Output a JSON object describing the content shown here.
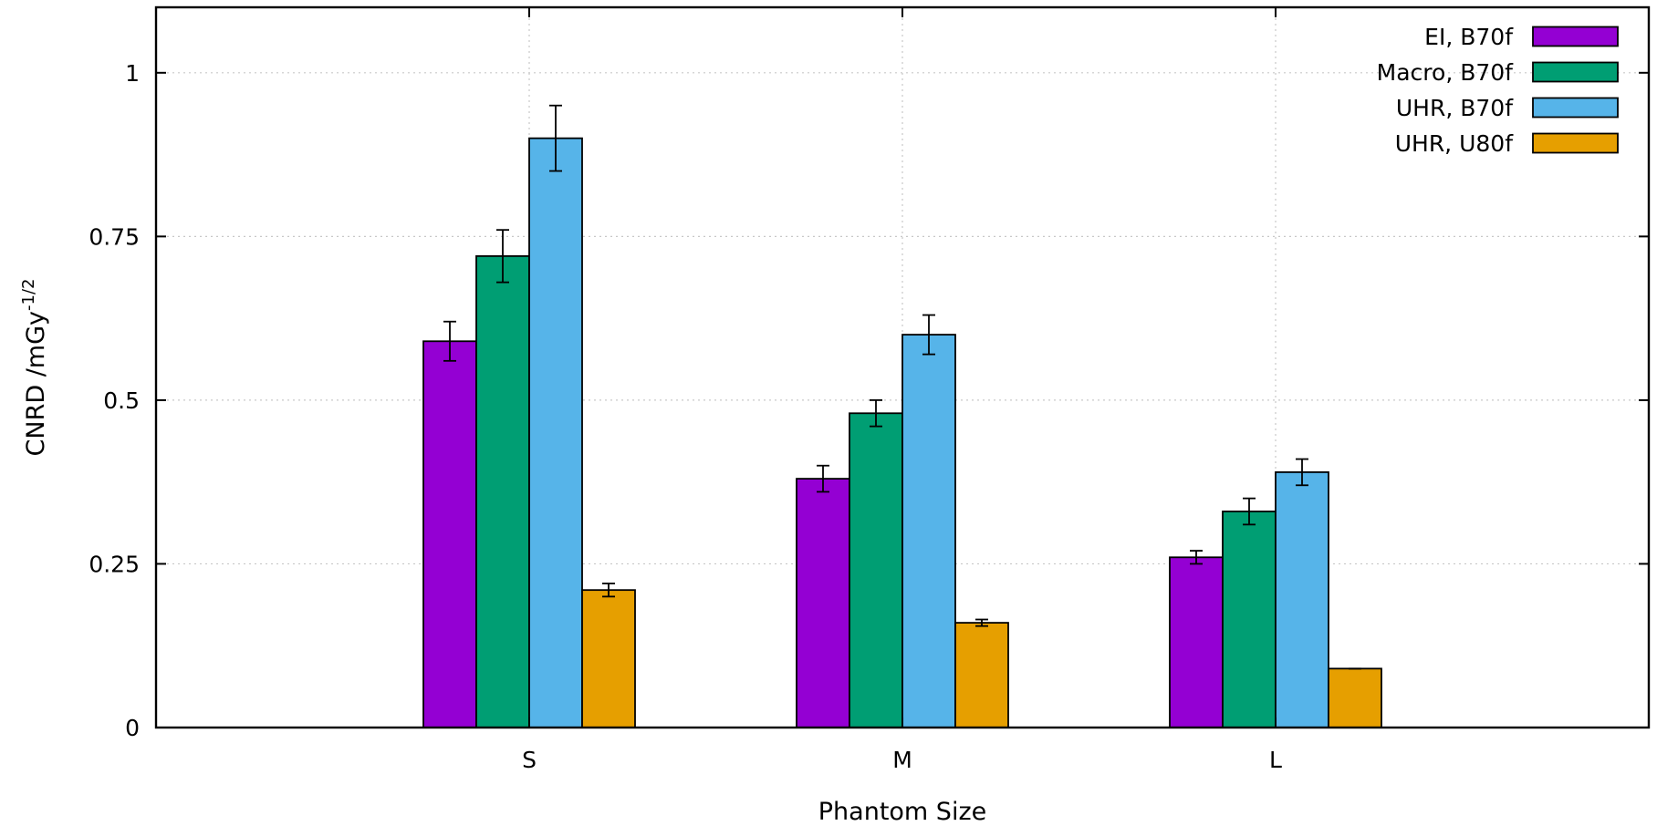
{
  "chart_data": {
    "type": "bar",
    "xlabel": "Phantom Size",
    "ylabel": "CNRD /mGy",
    "ylabel_sup": "-1/2",
    "categories": [
      "S",
      "M",
      "L"
    ],
    "ylim": [
      0,
      1.1
    ],
    "yticks": [
      0,
      0.25,
      0.5,
      0.75,
      1
    ],
    "ytick_labels": [
      "0",
      "0.25",
      "0.5",
      "0.75",
      "1"
    ],
    "grid": true,
    "legend_position": "top-right",
    "series": [
      {
        "name": "EI, B70f",
        "color": "#9400d3",
        "values": [
          0.59,
          0.38,
          0.26
        ],
        "errors": [
          0.03,
          0.02,
          0.01
        ]
      },
      {
        "name": "Macro, B70f",
        "color": "#009e73",
        "values": [
          0.72,
          0.48,
          0.33
        ],
        "errors": [
          0.04,
          0.02,
          0.02
        ]
      },
      {
        "name": "UHR, B70f",
        "color": "#56b4e9",
        "values": [
          0.9,
          0.6,
          0.39
        ],
        "errors": [
          0.05,
          0.03,
          0.02
        ]
      },
      {
        "name": "UHR, U80f",
        "color": "#e69f00",
        "values": [
          0.21,
          0.16,
          0.09
        ],
        "errors": [
          0.01,
          0.005,
          0.0
        ]
      }
    ]
  }
}
